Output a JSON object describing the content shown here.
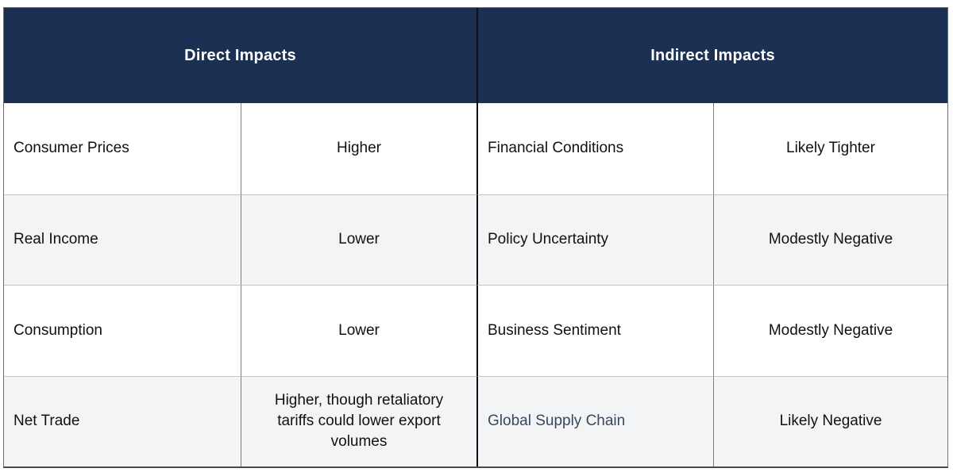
{
  "chart_data": {
    "type": "table",
    "title": "",
    "header_groups": [
      {
        "label": "Direct Impacts",
        "span": 2
      },
      {
        "label": "Indirect Impacts",
        "span": 2
      }
    ],
    "rows": [
      {
        "direct_factor": "Consumer Prices",
        "direct_impact": "Higher",
        "indirect_factor": "Financial Conditions",
        "indirect_impact": "Likely Tighter"
      },
      {
        "direct_factor": "Real Income",
        "direct_impact": "Lower",
        "indirect_factor": "Policy Uncertainty",
        "indirect_impact": "Modestly Negative"
      },
      {
        "direct_factor": "Consumption",
        "direct_impact": "Lower",
        "indirect_factor": "Business Sentiment",
        "indirect_impact": "Modestly Negative"
      },
      {
        "direct_factor": "Net Trade",
        "direct_impact": "Higher, though retaliatory tariffs could lower export volumes",
        "indirect_factor": "Global Supply Chain",
        "indirect_impact": "Likely Negative"
      }
    ]
  },
  "colors": {
    "header_bg": "#1c3054",
    "header_text": "#ffffff",
    "row_alt_bg": "#f3f4f6",
    "body_text": "#111111",
    "supply_chain_text": "#37495c",
    "grid_line": "#7f7f7f",
    "row_line": "#c6c6c6",
    "center_divider": "#0d0d12",
    "outer_border": "#6e6e6e",
    "outer_border_bottom": "#4a4a4a"
  }
}
